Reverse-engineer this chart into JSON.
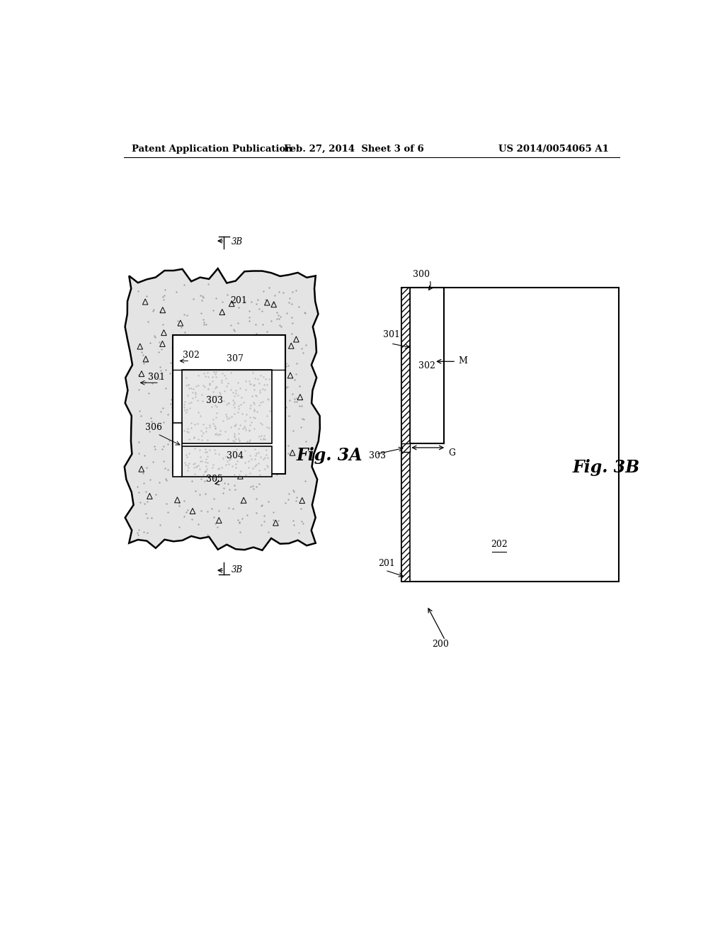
{
  "bg_color": "#ffffff",
  "header_left": "Patent Application Publication",
  "header_center": "Feb. 27, 2014  Sheet 3 of 6",
  "header_right": "US 2014/0054065 A1",
  "fig3a_label": "Fig. 3A",
  "fig3b_label": "Fig. 3B"
}
